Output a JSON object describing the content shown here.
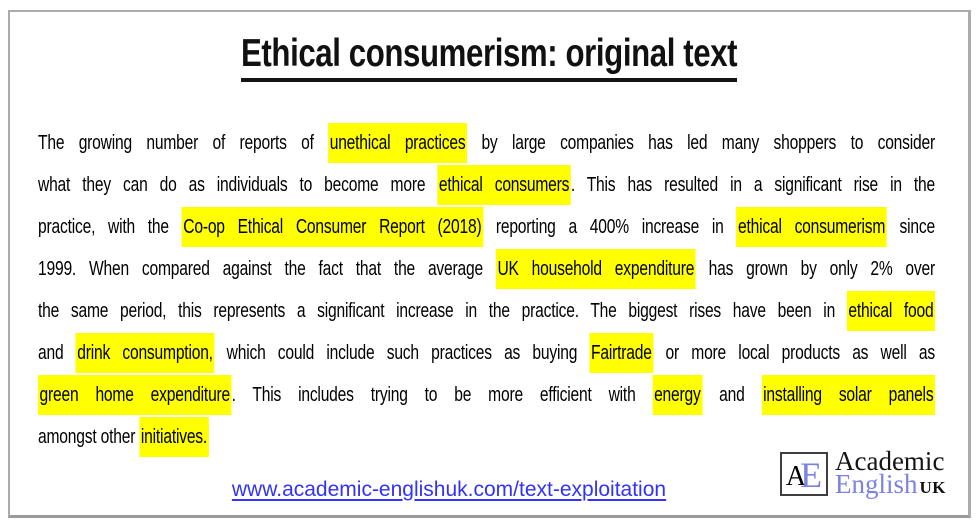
{
  "title": "Ethical consumerism: original text",
  "paragraph": {
    "lines": [
      {
        "last": false,
        "segments": [
          {
            "text": "The growing number of reports of ",
            "highlight": false
          },
          {
            "text": "unethical practices",
            "highlight": true
          },
          {
            "text": " by large companies has led many shoppers to consider",
            "highlight": false
          }
        ]
      },
      {
        "last": false,
        "segments": [
          {
            "text": "what they can do as individuals to become more ",
            "highlight": false
          },
          {
            "text": "ethical consumers",
            "highlight": true
          },
          {
            "text": ". This has resulted in a significant rise in the",
            "highlight": false
          }
        ]
      },
      {
        "last": false,
        "segments": [
          {
            "text": "practice, with the ",
            "highlight": false
          },
          {
            "text": "Co-op Ethical Consumer Report (2018)",
            "highlight": true
          },
          {
            "text": " reporting a 400% increase in ",
            "highlight": false
          },
          {
            "text": "ethical consumerism",
            "highlight": true
          },
          {
            "text": " since",
            "highlight": false
          }
        ]
      },
      {
        "last": false,
        "segments": [
          {
            "text": "1999. When compared against the fact that the average ",
            "highlight": false
          },
          {
            "text": "UK household expenditure",
            "highlight": true
          },
          {
            "text": " has grown by only 2% over",
            "highlight": false
          }
        ]
      },
      {
        "last": false,
        "segments": [
          {
            "text": "the same period, this represents a significant increase in the practice. The biggest rises have been in ",
            "highlight": false
          },
          {
            "text": "ethical food",
            "highlight": true
          }
        ]
      },
      {
        "last": false,
        "segments": [
          {
            "text": "and ",
            "highlight": false
          },
          {
            "text": "drink consumption,",
            "highlight": true
          },
          {
            "text": " which could include such practices as buying ",
            "highlight": false
          },
          {
            "text": "Fairtrade",
            "highlight": true
          },
          {
            "text": " or more local products as well as",
            "highlight": false
          }
        ]
      },
      {
        "last": false,
        "segments": [
          {
            "text": "green home expenditure",
            "highlight": true
          },
          {
            "text": ". This includes trying to be more efficient with ",
            "highlight": false
          },
          {
            "text": "energy",
            "highlight": true
          },
          {
            "text": " and ",
            "highlight": false
          },
          {
            "text": "installing solar panels",
            "highlight": true
          }
        ]
      },
      {
        "last": true,
        "segments": [
          {
            "text": "amongst other ",
            "highlight": false
          },
          {
            "text": "initiatives.",
            "highlight": true
          }
        ]
      }
    ]
  },
  "footer": {
    "url": "www.academic-englishuk.com/text-exploitation"
  },
  "logo": {
    "monogram_a": "A",
    "monogram_e": "E",
    "word1": "Academic",
    "word2": "English",
    "word3": "UK"
  },
  "colors": {
    "highlight": "#ffff00",
    "link_blue": "#3232fa",
    "logo_accent": "#7b82e4",
    "frame_border": "#ababab"
  }
}
